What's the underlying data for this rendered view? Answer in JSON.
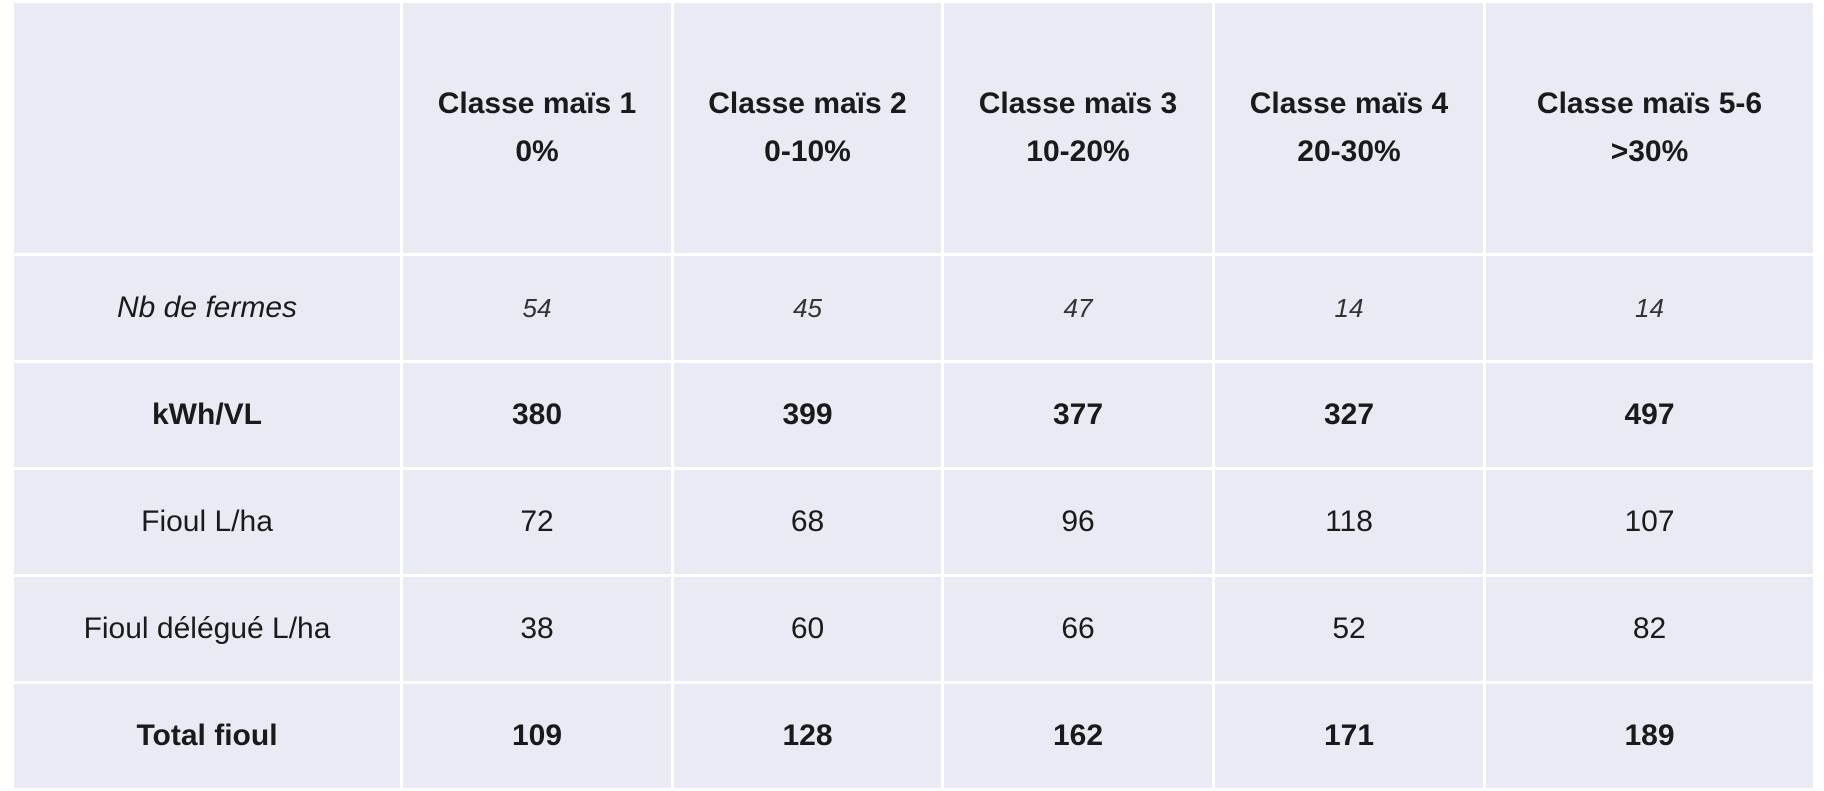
{
  "header": {
    "columns": [
      {
        "title": "Classe maïs 1",
        "range": "0%"
      },
      {
        "title": "Classe maïs 2",
        "range": "0-10%"
      },
      {
        "title": "Classe maïs 3",
        "range": "10-20%"
      },
      {
        "title": "Classe maïs 4",
        "range": "20-30%"
      },
      {
        "title": "Classe maïs 5-6",
        "range": ">30%"
      }
    ]
  },
  "table": {
    "rows": [
      {
        "label": "Nb de fermes",
        "values": [
          54,
          45,
          47,
          14,
          14
        ]
      },
      {
        "label": "kWh/VL",
        "values": [
          380,
          399,
          377,
          327,
          497
        ]
      },
      {
        "label": "Fioul L/ha",
        "values": [
          72,
          68,
          96,
          118,
          107
        ]
      },
      {
        "label": "Fioul délégué L/ha",
        "values": [
          38,
          60,
          66,
          52,
          82
        ]
      },
      {
        "label": "Total fioul",
        "values": [
          109,
          128,
          162,
          171,
          189
        ]
      }
    ]
  }
}
